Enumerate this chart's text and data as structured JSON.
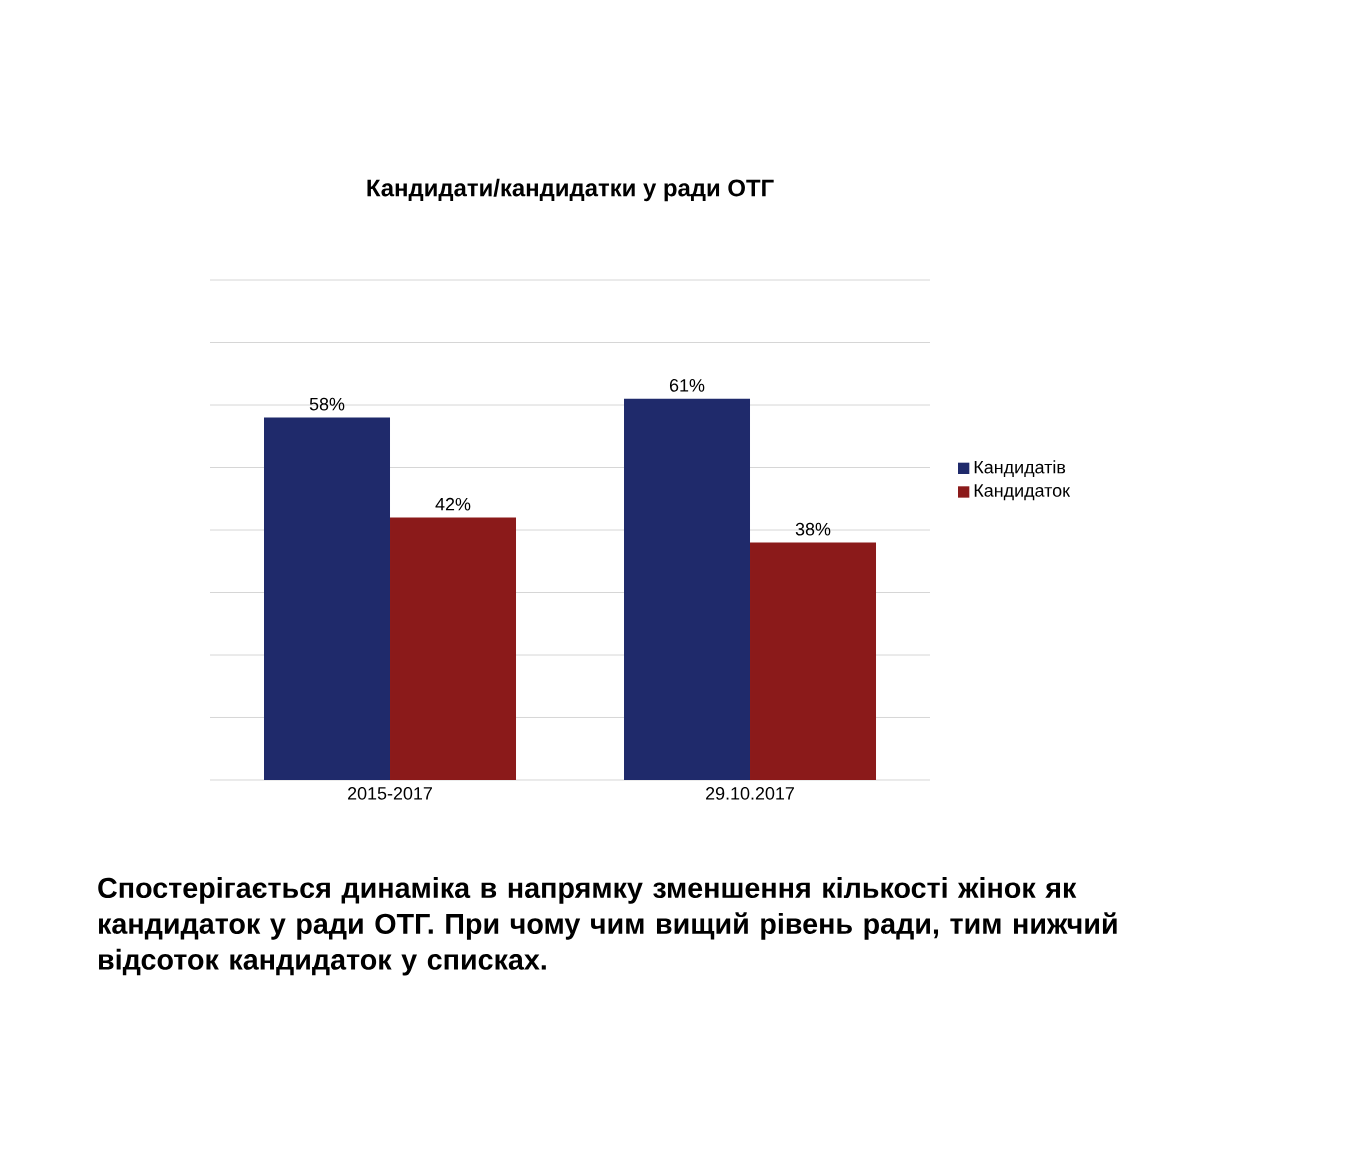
{
  "chart_data": {
    "type": "bar",
    "title": "Кандидати/кандидатки у ради ОТГ",
    "categories": [
      "2015-2017",
      "29.10.2017"
    ],
    "series": [
      {
        "name": "Кандидатів",
        "color": "#1f2a6b",
        "values": [
          58,
          61
        ],
        "value_labels": [
          "58%",
          "61%"
        ]
      },
      {
        "name": "Кандидаток",
        "color": "#8b1a1a",
        "values": [
          42,
          38
        ],
        "value_labels": [
          "42%",
          "38%"
        ]
      }
    ],
    "ylim": [
      0,
      80
    ],
    "yticks": [
      {
        "value": 0,
        "label": null
      },
      {
        "value": 10,
        "label": null
      },
      {
        "value": 20,
        "label": null
      },
      {
        "value": 30,
        "label": null
      },
      {
        "value": 40,
        "label": null
      },
      {
        "value": 50,
        "label": null
      },
      {
        "value": 60,
        "label": null
      },
      {
        "value": 70,
        "label": null
      },
      {
        "value": 80,
        "label": null
      }
    ],
    "grid": "y",
    "tick_labels": "x",
    "legend": "right",
    "annotations": [
      "Спостерігається динаміка в напрямку зменшення кількості жінок як  кандидаток у ради ОТГ.  При чому чим вищий рівень ради, тим нижчий відсоток кандидаток у списках."
    ]
  }
}
